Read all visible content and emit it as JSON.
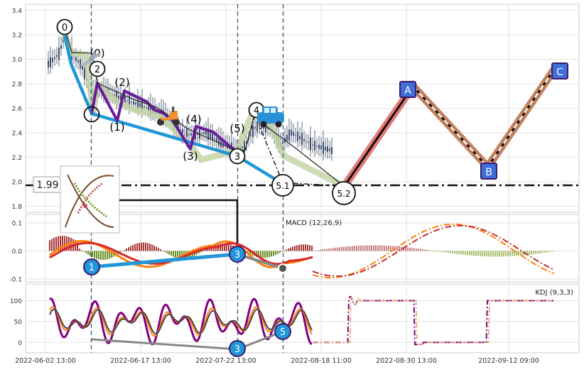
{
  "chart_data": {
    "type": "line",
    "x_tick_labels": [
      "2022-06-02 13:00",
      "2022-06-17 13:00",
      "2022-07-22 13:00",
      "2022-08-18 11:00",
      "2022-08-30 13:00",
      "2022-09-12 09:00"
    ],
    "panels": [
      {
        "name": "price",
        "ylim": [
          1.75,
          3.45
        ],
        "y_ticks": [
          "1.8",
          "2.0",
          "2.2",
          "2.4",
          "2.6",
          "2.8",
          "3.0",
          "3.2",
          "3.4"
        ],
        "support_level": "1.99",
        "wave_labels": [
          "0",
          "(0)",
          "2",
          "(2)",
          "(1)",
          "(4)",
          "(3)",
          "(5)",
          "4",
          "3",
          "5.1",
          "5.2"
        ],
        "target_labels": [
          "A",
          "B",
          "C"
        ],
        "projection": [
          {
            "x": 0.58,
            "y": 1.99
          },
          {
            "x": 0.7,
            "y": 2.78
          },
          {
            "x": 0.835,
            "y": 2.12
          },
          {
            "x": 0.96,
            "y": 2.95
          }
        ]
      },
      {
        "name": "macd",
        "title": "MACD (12,26,9)",
        "ylim": [
          -0.11,
          0.13
        ],
        "y_ticks": [
          "0.1",
          "0.0",
          "-0.1"
        ],
        "markers": [
          "1",
          "3"
        ]
      },
      {
        "name": "kdj",
        "title": "KDJ (9,3,3)",
        "ylim": [
          -25,
          140
        ],
        "y_ticks": [
          "100",
          "50",
          "0"
        ],
        "markers": [
          "3",
          "5"
        ]
      }
    ]
  },
  "colors": {
    "uptrend": "#2196d8",
    "zigzag": "#6a1b9a",
    "wave_band": "#c5d5a8",
    "projection_fill": "#e47a7a",
    "projection_fill2": "#c8805a",
    "target_box": "#3f6ed8",
    "macd": "#ff7f0e",
    "signal": "#d62728",
    "hist_pos": "#a83232",
    "hist_neg": "#6b8e23",
    "k": "#800080"
  }
}
